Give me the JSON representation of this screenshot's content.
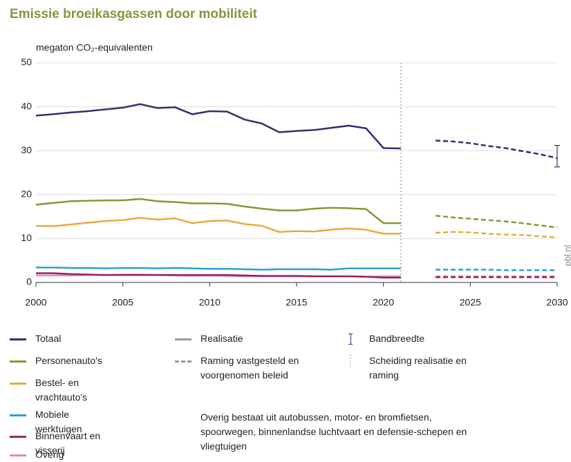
{
  "chart_data": {
    "type": "line",
    "title": "Emissie broeikasgassen door mobiliteit",
    "y_label": "megaton CO₂-equivalenten",
    "source": "pbl.nl",
    "x": [
      2000,
      2001,
      2002,
      2003,
      2004,
      2005,
      2006,
      2007,
      2008,
      2009,
      2010,
      2011,
      2012,
      2013,
      2014,
      2015,
      2016,
      2017,
      2018,
      2019,
      2020,
      2021,
      2022,
      2023,
      2024,
      2025,
      2026,
      2027,
      2028,
      2029,
      2030
    ],
    "xlim": [
      2000,
      2030
    ],
    "xticks": [
      2000,
      2005,
      2010,
      2015,
      2020,
      2025,
      2030
    ],
    "ylim": [
      0,
      50
    ],
    "yticks": [
      0,
      10,
      20,
      30,
      40,
      50
    ],
    "grid": true,
    "divider_x": 2021,
    "series": [
      {
        "name": "Totaal",
        "color": "#3b2a6e",
        "values": [
          38.0,
          38.3,
          38.7,
          39.0,
          39.4,
          39.8,
          40.6,
          39.7,
          39.9,
          38.3,
          39.0,
          38.9,
          37.1,
          36.2,
          34.2,
          34.5,
          34.7,
          35.2,
          35.7,
          35.1,
          30.6,
          30.5,
          null,
          null,
          null,
          null,
          null,
          null,
          null,
          null,
          null
        ],
        "forecast_values": [
          null,
          null,
          null,
          null,
          null,
          null,
          null,
          null,
          null,
          null,
          null,
          null,
          null,
          null,
          null,
          null,
          null,
          null,
          null,
          null,
          null,
          null,
          null,
          32.3,
          32.1,
          31.7,
          31.1,
          30.6,
          29.9,
          29.2,
          28.3
        ],
        "band": {
          "x": 2030,
          "low": 26.3,
          "high": 31.2
        }
      },
      {
        "name": "Personenauto's",
        "color": "#7f9a37",
        "values": [
          17.7,
          18.1,
          18.5,
          18.6,
          18.7,
          18.7,
          19.0,
          18.5,
          18.3,
          18.0,
          18.0,
          17.9,
          17.3,
          16.8,
          16.4,
          16.4,
          16.8,
          17.0,
          16.9,
          16.7,
          13.5,
          13.5,
          null,
          null,
          null,
          null,
          null,
          null,
          null,
          null,
          null
        ],
        "forecast_values": [
          null,
          null,
          null,
          null,
          null,
          null,
          null,
          null,
          null,
          null,
          null,
          null,
          null,
          null,
          null,
          null,
          null,
          null,
          null,
          null,
          null,
          null,
          null,
          15.2,
          14.8,
          14.5,
          14.2,
          13.9,
          13.5,
          13.0,
          12.5
        ]
      },
      {
        "name": "Bestel- en vrachtauto's",
        "color": "#e8aa3c",
        "values": [
          12.9,
          12.8,
          13.2,
          13.6,
          14.0,
          14.2,
          14.7,
          14.3,
          14.6,
          13.5,
          14.0,
          14.1,
          13.3,
          12.9,
          11.5,
          11.7,
          11.6,
          12.0,
          12.3,
          12.0,
          11.1,
          11.1,
          null,
          null,
          null,
          null,
          null,
          null,
          null,
          null,
          null
        ],
        "forecast_values": [
          null,
          null,
          null,
          null,
          null,
          null,
          null,
          null,
          null,
          null,
          null,
          null,
          null,
          null,
          null,
          null,
          null,
          null,
          null,
          null,
          null,
          null,
          null,
          11.3,
          11.5,
          11.4,
          11.1,
          10.9,
          10.8,
          10.5,
          10.3
        ]
      },
      {
        "name": "Mobiele werktuigen",
        "color": "#2a9fd6",
        "values": [
          3.4,
          3.4,
          3.3,
          3.3,
          3.2,
          3.3,
          3.3,
          3.2,
          3.3,
          3.2,
          3.1,
          3.1,
          3.0,
          2.9,
          3.0,
          3.0,
          3.0,
          2.9,
          3.2,
          3.2,
          3.2,
          3.2,
          null,
          null,
          null,
          null,
          null,
          null,
          null,
          null,
          null
        ],
        "forecast_values": [
          null,
          null,
          null,
          null,
          null,
          null,
          null,
          null,
          null,
          null,
          null,
          null,
          null,
          null,
          null,
          null,
          null,
          null,
          null,
          null,
          null,
          null,
          null,
          2.9,
          2.9,
          2.9,
          2.9,
          2.8,
          2.8,
          2.8,
          2.8
        ]
      },
      {
        "name": "Binnenvaart en visserij",
        "color": "#9e1f63",
        "values": [
          2.1,
          2.1,
          1.9,
          1.8,
          1.7,
          1.7,
          1.7,
          1.7,
          1.7,
          1.7,
          1.7,
          1.7,
          1.6,
          1.5,
          1.5,
          1.5,
          1.4,
          1.4,
          1.4,
          1.3,
          1.1,
          1.1,
          null,
          null,
          null,
          null,
          null,
          null,
          null,
          null,
          null
        ],
        "forecast_values": [
          null,
          null,
          null,
          null,
          null,
          null,
          null,
          null,
          null,
          null,
          null,
          null,
          null,
          null,
          null,
          null,
          null,
          null,
          null,
          null,
          null,
          null,
          null,
          1.2,
          1.2,
          1.2,
          1.2,
          1.2,
          1.2,
          1.2,
          1.2
        ]
      },
      {
        "name": "Overig",
        "color": "#d98fc0",
        "values": [
          1.6,
          1.6,
          1.6,
          1.7,
          1.7,
          1.8,
          1.8,
          1.7,
          1.6,
          1.5,
          1.6,
          1.5,
          1.4,
          1.4,
          1.4,
          1.4,
          1.4,
          1.4,
          1.4,
          1.3,
          1.4,
          1.4,
          null,
          null,
          null,
          null,
          null,
          null,
          null,
          null,
          null
        ],
        "forecast_values": [
          null,
          null,
          null,
          null,
          null,
          null,
          null,
          null,
          null,
          null,
          null,
          null,
          null,
          null,
          null,
          null,
          null,
          null,
          null,
          null,
          null,
          null,
          null,
          1.4,
          1.4,
          1.4,
          1.4,
          1.4,
          1.4,
          1.4,
          1.4
        ]
      }
    ],
    "style_legend": {
      "realized": "Realisatie",
      "forecast": "Raming vastgesteld en voorgenomen beleid",
      "band": "Bandbreedte",
      "divider": "Scheiding realisatie en raming"
    },
    "note": "Overig bestaat uit autobussen, motor- en bromfietsen, spoorwegen, binnenlandse luchtvaart en defensie-schepen en vliegtuigen"
  }
}
